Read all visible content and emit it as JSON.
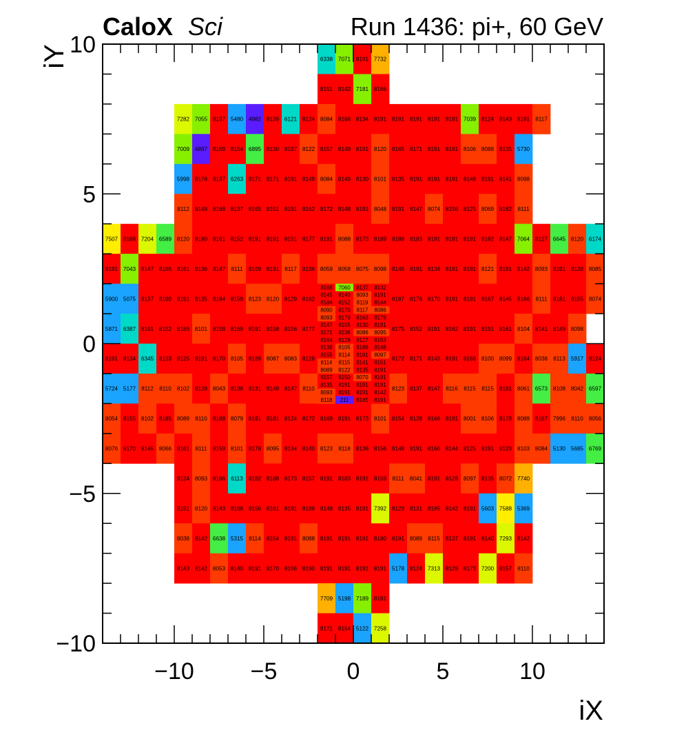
{
  "title": {
    "experiment": "CaloX",
    "subsystem": "Sci",
    "run": "Run 1436: pi+, 60 GeV"
  },
  "chart_data": {
    "type": "heatmap",
    "xlabel": "iX",
    "ylabel": "iY",
    "xlim": [
      -14,
      14
    ],
    "ylim": [
      -10,
      10
    ],
    "xticks": [
      -10,
      -5,
      0,
      5,
      10
    ],
    "yticks": [
      -10,
      -5,
      0,
      5,
      10
    ],
    "xtick_labels": [
      "−10",
      "−5",
      "0",
      "5",
      "10"
    ],
    "ytick_labels": [
      "−10",
      "−5",
      "0",
      "5",
      "10"
    ],
    "grid": false,
    "value_min": 211,
    "value_max": 8191,
    "palette": [
      "#5a1dff",
      "#1aa3ff",
      "#00d8c8",
      "#44ee44",
      "#86f000",
      "#dcf800",
      "#ffee00",
      "#ffb000",
      "#ff8000",
      "#ff3a00",
      "#ff0000"
    ],
    "rows": [
      {
        "y": 10,
        "x0": -2,
        "values": [
          6338,
          7071,
          8191,
          7732
        ]
      },
      {
        "y": 9,
        "x0": -2,
        "values": [
          8151,
          8142,
          7181,
          8166
        ]
      },
      {
        "y": 8,
        "x0": -10,
        "values": [
          7282,
          7055,
          8137,
          5480,
          4982,
          8139,
          6121,
          8124,
          8084,
          8166,
          8134,
          8191,
          8191,
          8191,
          8191,
          8191,
          7039,
          8124,
          8143,
          8191,
          8117
        ]
      },
      {
        "y": 7,
        "x0": -10,
        "values": [
          7009,
          4897,
          8169,
          8154,
          6895,
          8130,
          8187,
          8122,
          8157,
          8149,
          8191,
          8120,
          8165,
          8171,
          8191,
          8191,
          8106,
          8088,
          8135,
          5730
        ]
      },
      {
        "y": 6,
        "x0": -10,
        "values": [
          5998,
          8178,
          8137,
          6263,
          8171,
          8171,
          8191,
          8149,
          8084,
          8149,
          8130,
          8101,
          8135,
          8191,
          8191,
          8191,
          8148,
          8191,
          8141,
          8098
        ]
      },
      {
        "y": 5,
        "x0": -10,
        "values": [
          8112,
          8148,
          8168,
          8137,
          8165,
          8151,
          8191,
          8162,
          8172,
          8148,
          8191,
          8048,
          8191,
          8147,
          8074,
          8156,
          8125,
          8069,
          8182,
          8111
        ]
      },
      {
        "y": 4,
        "x0": -14,
        "values": [
          7507,
          8168,
          7204,
          6589,
          8120,
          8180,
          8161,
          8152,
          8191,
          8191,
          8151,
          8177,
          8191,
          8088,
          8173,
          8189,
          8188,
          8183,
          8191,
          8191,
          8191,
          8182,
          8147,
          7064,
          8127,
          6645,
          8120,
          6174
        ]
      },
      {
        "y": 3,
        "x0": -14,
        "values": [
          8191,
          7043,
          8147,
          8166,
          8161,
          8136,
          8147,
          8111,
          8169,
          8191,
          8117,
          8186,
          8059,
          8058,
          8075,
          8098,
          8146,
          8191,
          8134,
          8191,
          8191,
          8121,
          8191,
          8142,
          8093,
          8191,
          8138,
          8085
        ]
      },
      {
        "y": 2,
        "x0": -14,
        "values": [
          5900,
          5075,
          8137,
          8190,
          8191,
          8135,
          8184,
          8159,
          8123,
          8120,
          8129,
          8162,
          null,
          null,
          null,
          null,
          8187,
          8176,
          8170,
          8191,
          8191,
          8167,
          8145,
          8166,
          8111,
          8181,
          8155,
          8074
        ]
      },
      {
        "y": 1,
        "x0": -14,
        "values": [
          5871,
          6387,
          8191,
          8152,
          8189,
          8101,
          8158,
          8169,
          8191,
          8158,
          8156,
          8177,
          null,
          null,
          null,
          null,
          8175,
          8152,
          8191,
          8162,
          8191,
          8191,
          8161,
          8104,
          8141,
          8149,
          8098,
          null
        ]
      },
      {
        "y": 0,
        "x0": -14,
        "values": [
          8191,
          8134,
          6345,
          8133,
          8125,
          8191,
          8170,
          8105,
          8189,
          8087,
          8083,
          8128,
          null,
          null,
          null,
          null,
          8172,
          8171,
          8143,
          8191,
          8166,
          8100,
          8099,
          8164,
          8038,
          8113,
          5917,
          8124
        ]
      },
      {
        "y": -1,
        "x0": -14,
        "values": [
          5724,
          5177,
          8112,
          8110,
          8102,
          8138,
          8043,
          8138,
          8131,
          8149,
          8147,
          8110,
          null,
          null,
          null,
          null,
          8123,
          8137,
          8147,
          8116,
          8115,
          8115,
          8191,
          8061,
          6573,
          8108,
          8042,
          6597
        ]
      },
      {
        "y": -2,
        "x0": -14,
        "values": [
          8054,
          8155,
          8102,
          8185,
          8089,
          8110,
          8188,
          8079,
          8191,
          8181,
          8124,
          8172,
          8169,
          8191,
          8173,
          8101,
          8154,
          8128,
          8166,
          8191,
          8001,
          8106,
          8178,
          8089,
          8167,
          7996,
          8110,
          8056
        ]
      },
      {
        "y": -3,
        "x0": -14,
        "values": [
          8076,
          8170,
          8145,
          8066,
          8161,
          8111,
          8159,
          8101,
          8178,
          8095,
          8134,
          8140,
          8123,
          8118,
          8136,
          8156,
          8148,
          8191,
          8166,
          8144,
          8125,
          8191,
          8129,
          8103,
          8084,
          5130,
          5685,
          6769
        ]
      },
      {
        "y": -4,
        "x0": -10,
        "values": [
          8124,
          8093,
          8186,
          6113,
          8182,
          8188,
          8173,
          8157,
          8191,
          8183,
          8191,
          8159,
          8111,
          8041,
          8191,
          8128,
          8097,
          8135,
          8072,
          7740
        ]
      },
      {
        "y": -5,
        "x0": -10,
        "values": [
          8191,
          8120,
          8143,
          8168,
          8156,
          8161,
          8191,
          8189,
          8148,
          8135,
          8191,
          7392,
          8129,
          8131,
          8185,
          8142,
          8191,
          5603,
          7588,
          5369
        ]
      },
      {
        "y": -6,
        "x0": -10,
        "values": [
          8038,
          8142,
          6638,
          5315,
          8114,
          8154,
          8191,
          8088,
          8191,
          8191,
          8191,
          8180,
          8191,
          8089,
          8115,
          8137,
          8191,
          8140,
          7293,
          8142
        ]
      },
      {
        "y": -7,
        "x0": -10,
        "values": [
          8143,
          8142,
          8053,
          8140,
          8191,
          8170,
          8166,
          8190,
          8191,
          8191,
          8191,
          8191,
          5178,
          8124,
          7313,
          8128,
          8173,
          7200,
          8157,
          8110
        ]
      },
      {
        "y": -8,
        "x0": -2,
        "values": [
          7709,
          5198,
          7189,
          8181
        ]
      },
      {
        "y": -9,
        "x0": -2,
        "values": [
          8171,
          8154,
          5122,
          7258
        ]
      }
    ],
    "fine_region": {
      "x0": -2,
      "x1": 2,
      "y0": -2,
      "y1": 2,
      "nx": 4,
      "ny": 16,
      "rows": [
        [
          8168,
          7060,
          8137,
          8132
        ],
        [
          8145,
          8140,
          8093,
          8191
        ],
        [
          8184,
          8152,
          8119,
          8144
        ],
        [
          8090,
          8170,
          8117,
          8086
        ],
        [
          8093,
          8179,
          8163,
          8178
        ],
        [
          8147,
          8155,
          8130,
          8191
        ],
        [
          8171,
          8136,
          8086,
          8095
        ],
        [
          8164,
          8128,
          8127,
          8163
        ],
        [
          8138,
          8105,
          8186,
          8148
        ],
        [
          8155,
          8114,
          8191,
          8097
        ],
        [
          8114,
          8115,
          8141,
          8151
        ],
        [
          8089,
          8122,
          8135,
          8191
        ],
        [
          8157,
          8150,
          8070,
          8191
        ],
        [
          8135,
          8191,
          8191,
          8191
        ],
        [
          8093,
          8191,
          8191,
          8142
        ],
        [
          8118,
          211,
          8185,
          8191
        ]
      ]
    }
  }
}
